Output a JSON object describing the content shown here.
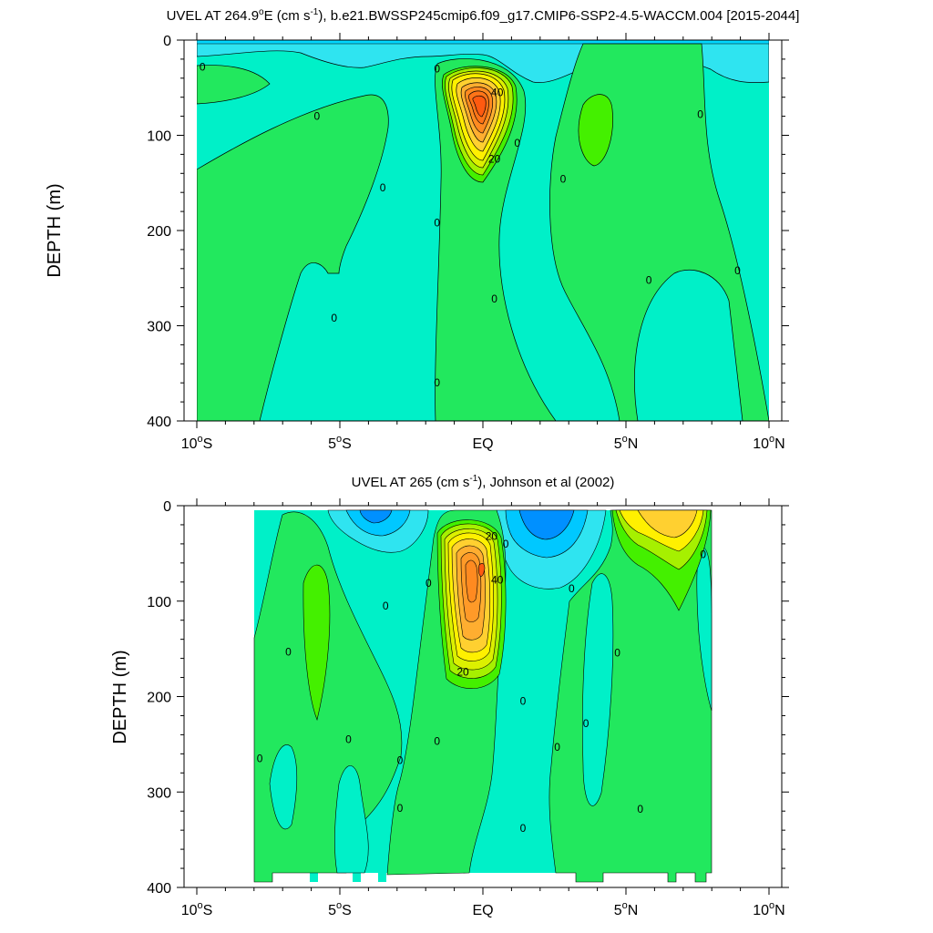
{
  "colors": {
    "cyan_light": "#00FFE6",
    "aqua": "#00F0C8",
    "teal_light": "#2EE8D8",
    "green": "#22E85E",
    "green_bright": "#44F000",
    "yellow_green": "#A6F000",
    "yellow": "#FFF000",
    "gold": "#FFD030",
    "orange_light": "#FFAE30",
    "orange": "#FF8A20",
    "orange_red": "#FF5A10",
    "sky": "#00E0FF",
    "sky2": "#00C8FF",
    "blue": "#0090FF",
    "contour_line": "#000000"
  },
  "chart_data": [
    {
      "type": "contour",
      "title_main": "UVEL AT 264.9",
      "title_deg": "o",
      "title_e": "E (cm s",
      "title_sup": "-1",
      "title_rest": "), b.e21.BWSSP245cmip6.f09_g17.CMIP6-SSP2-4.5-WACCM.004 [2015-2044]",
      "ylabel": "DEPTH (m)",
      "xlim": [
        -10,
        10
      ],
      "ylim": [
        0,
        400
      ],
      "x_ticks": [
        {
          "pre": "10",
          "sup": "o",
          "post": "S",
          "value": -10
        },
        {
          "pre": "5",
          "sup": "o",
          "post": "S",
          "value": -5
        },
        {
          "pre": "EQ",
          "sup": "",
          "post": "",
          "value": 0
        },
        {
          "pre": "5",
          "sup": "o",
          "post": "N",
          "value": 5
        },
        {
          "pre": "10",
          "sup": "o",
          "post": "N",
          "value": 10
        }
      ],
      "y_ticks": [
        "0",
        "100",
        "200",
        "300",
        "400"
      ],
      "y_tick_values": [
        0,
        100,
        200,
        300,
        400
      ],
      "contour_interval": 5,
      "data_xlim": [
        -10,
        10
      ],
      "core": {
        "lat": 0,
        "depth": 70,
        "max_value": 50
      },
      "contour_labels": [
        {
          "text": "0",
          "lat": -9.8,
          "depth": 28
        },
        {
          "text": "0",
          "lat": -5.8,
          "depth": 80
        },
        {
          "text": "0",
          "lat": -3.5,
          "depth": 155
        },
        {
          "text": "0",
          "lat": -1.6,
          "depth": 30
        },
        {
          "text": "0",
          "lat": -1.6,
          "depth": 192
        },
        {
          "text": "0",
          "lat": -5.2,
          "depth": 292
        },
        {
          "text": "0",
          "lat": -1.6,
          "depth": 360
        },
        {
          "text": "0",
          "lat": 0.4,
          "depth": 272
        },
        {
          "text": "0",
          "lat": 1.2,
          "depth": 108
        },
        {
          "text": "0",
          "lat": 2.8,
          "depth": 146
        },
        {
          "text": "0",
          "lat": 5.8,
          "depth": 252
        },
        {
          "text": "0",
          "lat": 7.6,
          "depth": 78
        },
        {
          "text": "0",
          "lat": 8.9,
          "depth": 242
        },
        {
          "text": "40",
          "lat": 0.5,
          "depth": 55
        },
        {
          "text": "20",
          "lat": 0.4,
          "depth": 125
        }
      ]
    },
    {
      "type": "contour",
      "title_main": "UVEL AT 265 (cm s",
      "title_sup": "-1",
      "title_rest": "), Johnson et al (2002)",
      "ylabel": "DEPTH (m)",
      "xlim": [
        -10,
        10
      ],
      "ylim": [
        0,
        400
      ],
      "x_ticks": [
        {
          "pre": "10",
          "sup": "o",
          "post": "S",
          "value": -10
        },
        {
          "pre": "5",
          "sup": "o",
          "post": "S",
          "value": -5
        },
        {
          "pre": "EQ",
          "sup": "",
          "post": "",
          "value": 0
        },
        {
          "pre": "5",
          "sup": "o",
          "post": "N",
          "value": 5
        },
        {
          "pre": "10",
          "sup": "o",
          "post": "N",
          "value": 10
        }
      ],
      "y_ticks": [
        "0",
        "100",
        "200",
        "300",
        "400"
      ],
      "y_tick_values": [
        0,
        100,
        200,
        300,
        400
      ],
      "contour_interval": 5,
      "data_xlim": [
        -8,
        8
      ],
      "core": {
        "lat": 0,
        "depth": 65,
        "max_value": 45
      },
      "contour_labels": [
        {
          "text": "0",
          "lat": -7.8,
          "depth": 265
        },
        {
          "text": "0",
          "lat": -6.8,
          "depth": 153
        },
        {
          "text": "0",
          "lat": -4.7,
          "depth": 245
        },
        {
          "text": "0",
          "lat": -3.4,
          "depth": 105
        },
        {
          "text": "0",
          "lat": -2.9,
          "depth": 267
        },
        {
          "text": "0",
          "lat": -2.9,
          "depth": 317
        },
        {
          "text": "0",
          "lat": -1.9,
          "depth": 81
        },
        {
          "text": "0",
          "lat": -1.6,
          "depth": 247
        },
        {
          "text": "0",
          "lat": 0.8,
          "depth": 40
        },
        {
          "text": "0",
          "lat": 1.4,
          "depth": 205
        },
        {
          "text": "0",
          "lat": 1.4,
          "depth": 338
        },
        {
          "text": "0",
          "lat": 2.6,
          "depth": 253
        },
        {
          "text": "0",
          "lat": 3.1,
          "depth": 87
        },
        {
          "text": "0",
          "lat": 3.6,
          "depth": 228
        },
        {
          "text": "0",
          "lat": 4.7,
          "depth": 154
        },
        {
          "text": "0",
          "lat": 5.5,
          "depth": 318
        },
        {
          "text": "0",
          "lat": 7.7,
          "depth": 51
        },
        {
          "text": "20",
          "lat": 0.3,
          "depth": 32
        },
        {
          "text": "40",
          "lat": 0.5,
          "depth": 78
        },
        {
          "text": "20",
          "lat": -0.7,
          "depth": 174
        }
      ]
    }
  ]
}
